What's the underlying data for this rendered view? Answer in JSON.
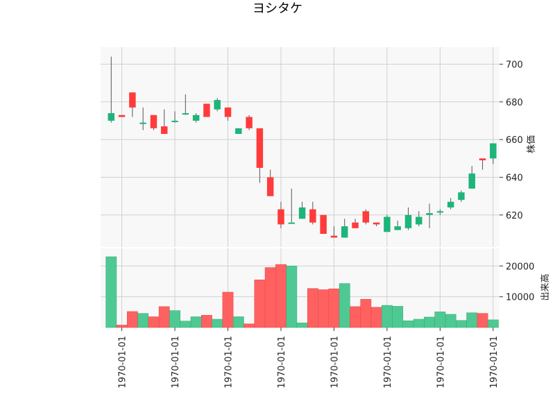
{
  "chart_data": {
    "type": "candlestick",
    "title": "ヨシタケ",
    "price_axis": {
      "label": "株価",
      "ticks": [
        620,
        640,
        660,
        680,
        700
      ],
      "range": [
        603,
        709
      ]
    },
    "volume_axis": {
      "label": "出来高",
      "ticks": [
        10000,
        20000
      ],
      "range": [
        0,
        23000
      ]
    },
    "x_tick_label": "1970-01-01",
    "x_tick_index": [
      1,
      6,
      11,
      16,
      21,
      26,
      31,
      36
    ],
    "grid": true,
    "colors": {
      "up": "#1db57a",
      "down": "#ff3b3b",
      "up_volume": "#4fc993",
      "down_volume": "#ff6161",
      "wick": "#555555",
      "plot_bg": "#f8f8f8",
      "grid": "#d0d0d0"
    },
    "candles": [
      {
        "o": 670,
        "h": 704,
        "l": 669,
        "c": 674,
        "v": 23000
      },
      {
        "o": 673,
        "h": 673,
        "l": 672,
        "c": 672,
        "v": 800
      },
      {
        "o": 685,
        "h": 685,
        "l": 672,
        "c": 677,
        "v": 5200
      },
      {
        "o": 669,
        "h": 677,
        "l": 665,
        "c": 669,
        "v": 4600
      },
      {
        "o": 673,
        "h": 673,
        "l": 665,
        "c": 666,
        "v": 3500
      },
      {
        "o": 667,
        "h": 676,
        "l": 663,
        "c": 663,
        "v": 6800
      },
      {
        "o": 670,
        "h": 675,
        "l": 669,
        "c": 670,
        "v": 5500
      },
      {
        "o": 674,
        "h": 684,
        "l": 673,
        "c": 674,
        "v": 2100
      },
      {
        "o": 670,
        "h": 674,
        "l": 669,
        "c": 673,
        "v": 3500
      },
      {
        "o": 679,
        "h": 679,
        "l": 672,
        "c": 672,
        "v": 4000
      },
      {
        "o": 676,
        "h": 682,
        "l": 675,
        "c": 681,
        "v": 2700
      },
      {
        "o": 677,
        "h": 677,
        "l": 670,
        "c": 672,
        "v": 11500
      },
      {
        "o": 663,
        "h": 666,
        "l": 663,
        "c": 666,
        "v": 3500
      },
      {
        "o": 672,
        "h": 673,
        "l": 665,
        "c": 666,
        "v": 1200
      },
      {
        "o": 666,
        "h": 666,
        "l": 637,
        "c": 645,
        "v": 15500
      },
      {
        "o": 640,
        "h": 644,
        "l": 630,
        "c": 630,
        "v": 19500
      },
      {
        "o": 623,
        "h": 627,
        "l": 613,
        "c": 615,
        "v": 20500
      },
      {
        "o": 616,
        "h": 634,
        "l": 616,
        "c": 616,
        "v": 20000
      },
      {
        "o": 618,
        "h": 627,
        "l": 618,
        "c": 624,
        "v": 1500
      },
      {
        "o": 623,
        "h": 627,
        "l": 615,
        "c": 616,
        "v": 12700
      },
      {
        "o": 620,
        "h": 620,
        "l": 610,
        "c": 610,
        "v": 12300
      },
      {
        "o": 609,
        "h": 614,
        "l": 608,
        "c": 608,
        "v": 12600
      },
      {
        "o": 608,
        "h": 618,
        "l": 608,
        "c": 614,
        "v": 14300
      },
      {
        "o": 616,
        "h": 618,
        "l": 613,
        "c": 613,
        "v": 6800
      },
      {
        "o": 622,
        "h": 623,
        "l": 615,
        "c": 616,
        "v": 9200
      },
      {
        "o": 616,
        "h": 616,
        "l": 614,
        "c": 615,
        "v": 6600
      },
      {
        "o": 611,
        "h": 620,
        "l": 611,
        "c": 619,
        "v": 7200
      },
      {
        "o": 612,
        "h": 617,
        "l": 612,
        "c": 614,
        "v": 6900
      },
      {
        "o": 613,
        "h": 624,
        "l": 612,
        "c": 620,
        "v": 2200
      },
      {
        "o": 615,
        "h": 622,
        "l": 614,
        "c": 619,
        "v": 2700
      },
      {
        "o": 620,
        "h": 626,
        "l": 613,
        "c": 621,
        "v": 3400
      },
      {
        "o": 622,
        "h": 623,
        "l": 620,
        "c": 622,
        "v": 5100
      },
      {
        "o": 624,
        "h": 629,
        "l": 623,
        "c": 627,
        "v": 4300
      },
      {
        "o": 628,
        "h": 633,
        "l": 627,
        "c": 632,
        "v": 2300
      },
      {
        "o": 634,
        "h": 646,
        "l": 634,
        "c": 642,
        "v": 4800
      },
      {
        "o": 650,
        "h": 650,
        "l": 644,
        "c": 649,
        "v": 4600
      },
      {
        "o": 650,
        "h": 658,
        "l": 647,
        "c": 658,
        "v": 2500
      }
    ]
  }
}
